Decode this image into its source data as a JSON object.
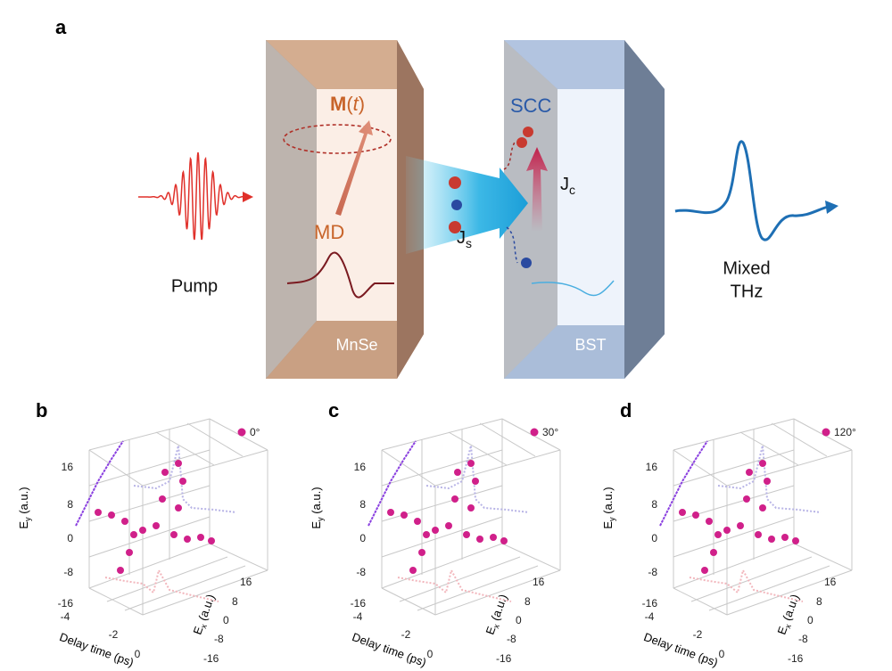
{
  "figure": {
    "panel_a": {
      "label": "a",
      "pump": "Pump",
      "magnetization": [
        "M",
        "(",
        "t",
        ")"
      ],
      "md": "MD",
      "mnse": "MnSe",
      "spin_current": [
        "J",
        "s"
      ],
      "scc": "SCC",
      "charge_current": [
        "J",
        "c"
      ],
      "bst": "BST",
      "output": [
        "Mixed",
        "THz"
      ]
    },
    "panels": [
      {
        "label": "b",
        "legend": "0°"
      },
      {
        "label": "c",
        "legend": "30°"
      },
      {
        "label": "d",
        "legend": "120°"
      }
    ],
    "axes": {
      "y_label": [
        "E",
        "y",
        " (a.u.)"
      ],
      "delay_label": "Delay time (ps)",
      "x_label": [
        "E",
        "x",
        " (a.u.)"
      ],
      "y_ticks": [
        "16",
        "8",
        "0",
        "-8",
        "-16"
      ],
      "delay_ticks": [
        "-4",
        "-2",
        "0"
      ],
      "x_ticks": [
        "16",
        "8",
        "0",
        "-8",
        "-16"
      ]
    }
  }
}
